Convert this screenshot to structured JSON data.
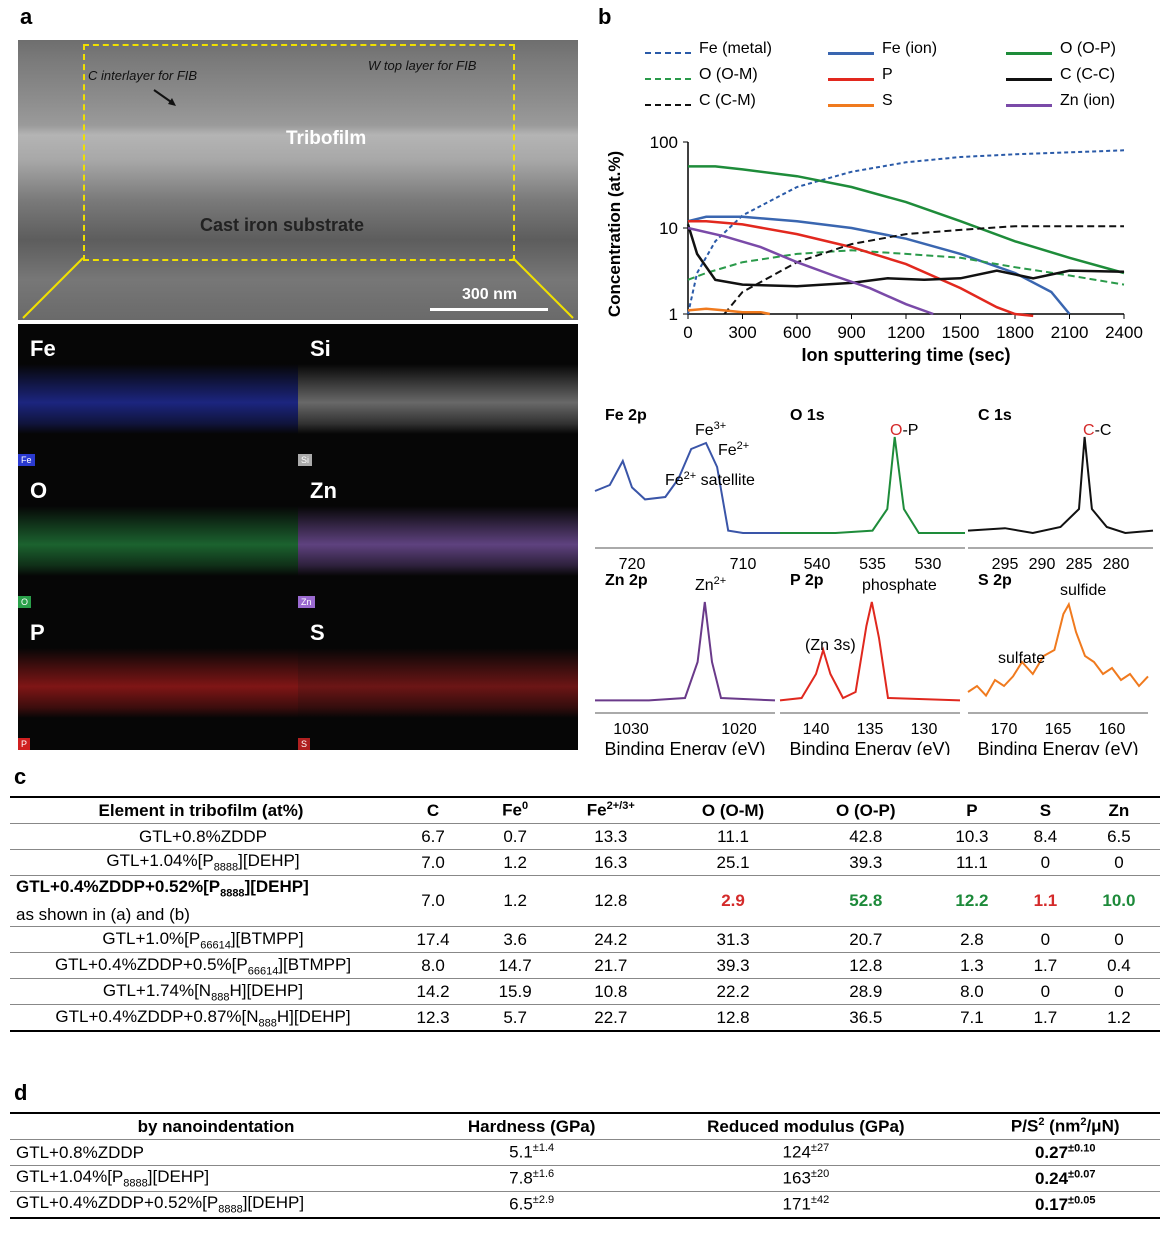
{
  "panels": {
    "a": "a",
    "b": "b",
    "c": "c",
    "d": "d"
  },
  "tem": {
    "c_interlayer": "C interlayer for FIB",
    "w_top": "W top layer for FIB",
    "tribofilm": "Tribofilm",
    "substrate": "Cast iron substrate",
    "scale": "300 nm"
  },
  "maps": [
    {
      "el": "Fe",
      "tag": "Fe",
      "color": "#2a3ad0"
    },
    {
      "el": "Si",
      "tag": "Si",
      "color": "#aaaaaa"
    },
    {
      "el": "O",
      "tag": "O",
      "color": "#2aa04a"
    },
    {
      "el": "Zn",
      "tag": "Zn",
      "color": "#9a6ad0"
    },
    {
      "el": "P",
      "tag": "P",
      "color": "#d02020"
    },
    {
      "el": "S",
      "tag": "S",
      "color": "#b02020"
    }
  ],
  "chart_data": [
    {
      "type": "line",
      "xlabel": "Ion sputtering time (sec)",
      "ylabel": "Concentration (at.%)",
      "yscale": "log",
      "xlim": [
        0,
        2400
      ],
      "ylim": [
        1,
        100
      ],
      "xticks": [
        "0",
        "300",
        "600",
        "900",
        "1200",
        "1500",
        "1800",
        "2100",
        "2400"
      ],
      "yticks": [
        "1",
        "10",
        "100"
      ],
      "legend": "top",
      "series": [
        {
          "name": "Fe (metal)",
          "color": "#2a5aa8",
          "dash": "4,3",
          "x": [
            0,
            50,
            150,
            300,
            600,
            900,
            1200,
            1500,
            1800,
            2100,
            2400
          ],
          "y": [
            1,
            3,
            7,
            14,
            30,
            45,
            58,
            67,
            72,
            76,
            80
          ]
        },
        {
          "name": "Fe (ion)",
          "color": "#3a66b0",
          "dash": "",
          "x": [
            0,
            100,
            300,
            600,
            900,
            1200,
            1500,
            1800,
            2000,
            2100
          ],
          "y": [
            12,
            13.5,
            13.5,
            12,
            10,
            7.5,
            5,
            3,
            1.8,
            1
          ]
        },
        {
          "name": "O (O-P)",
          "color": "#1e8c3a",
          "dash": "",
          "x": [
            0,
            150,
            300,
            600,
            900,
            1200,
            1500,
            1800,
            2100,
            2400
          ],
          "y": [
            52,
            52,
            48,
            40,
            30,
            20,
            12,
            7,
            4.5,
            3
          ]
        },
        {
          "name": "O (O-M)",
          "color": "#2a9a4a",
          "dash": "7,4",
          "x": [
            0,
            100,
            300,
            600,
            900,
            1200,
            1500,
            1800,
            2100,
            2400
          ],
          "y": [
            2.5,
            3,
            4,
            5,
            5.5,
            5,
            4.5,
            3.5,
            2.8,
            2.2
          ]
        },
        {
          "name": "P",
          "color": "#e2281e",
          "dash": "",
          "x": [
            0,
            100,
            300,
            600,
            900,
            1200,
            1500,
            1700,
            1800,
            1900
          ],
          "y": [
            12,
            12,
            11,
            8.5,
            6,
            3.8,
            2,
            1.2,
            1,
            0.95
          ]
        },
        {
          "name": "C (C-C)",
          "color": "#111111",
          "dash": "",
          "x": [
            0,
            50,
            150,
            300,
            600,
            900,
            1100,
            1300,
            1500,
            1700,
            1900,
            2100,
            2400
          ],
          "y": [
            11,
            5,
            2.5,
            2.2,
            2.1,
            2.3,
            2.6,
            2.5,
            2.6,
            3.2,
            2.6,
            3.2,
            3.1
          ]
        },
        {
          "name": "C (C-M)",
          "color": "#111111",
          "dash": "7,4",
          "x": [
            200,
            300,
            600,
            900,
            1200,
            1500,
            1800,
            2100,
            2400
          ],
          "y": [
            1,
            1.8,
            4,
            6.5,
            8.5,
            9.5,
            10.5,
            10.5,
            10.5
          ]
        },
        {
          "name": "S",
          "color": "#f07a1e",
          "dash": "",
          "x": [
            0,
            100,
            200,
            300,
            400,
            450
          ],
          "y": [
            1.1,
            1.15,
            1.1,
            1.05,
            1.05,
            1
          ]
        },
        {
          "name": "Zn (ion)",
          "color": "#7a4aa8",
          "dash": "",
          "x": [
            0,
            200,
            400,
            600,
            800,
            1000,
            1200,
            1350
          ],
          "y": [
            10,
            8,
            6,
            4,
            2.8,
            2,
            1.3,
            1
          ]
        }
      ]
    }
  ],
  "spectra": [
    {
      "title": "Fe 2p",
      "ticks": [
        "720",
        "710"
      ],
      "labels": [
        "Fe3+",
        "Fe2+",
        "Fe2+ satellite"
      ],
      "color": "#3a55a8"
    },
    {
      "title": "O 1s",
      "ticks": [
        "540",
        "535",
        "530"
      ],
      "labels": [
        "O-P"
      ],
      "color": "#1e8c3a"
    },
    {
      "title": "C 1s",
      "ticks": [
        "295",
        "290",
        "285",
        "280"
      ],
      "labels": [
        "C-C"
      ],
      "color": "#111111"
    },
    {
      "title": "Zn 2p",
      "ticks": [
        "1030",
        "1020"
      ],
      "labels": [
        "Zn2+"
      ],
      "color": "#6a3a8a",
      "xlabel": "Binding Energy (eV)"
    },
    {
      "title": "P 2p",
      "ticks": [
        "140",
        "135",
        "130"
      ],
      "labels": [
        "(Zn 3s)",
        "phosphate"
      ],
      "color": "#e0281e",
      "xlabel": "Binding Energy (eV)"
    },
    {
      "title": "S 2p",
      "ticks": [
        "170",
        "165",
        "160"
      ],
      "labels": [
        "sulfate",
        "sulfide"
      ],
      "color": "#f07a1e",
      "xlabel": "Binding Energy (eV)"
    }
  ],
  "table_c": {
    "headers": [
      "Element in tribofilm (at%)",
      "C",
      "Fe0",
      "Fe2+/3+",
      "O (O-M)",
      "O (O-P)",
      "P",
      "S",
      "Zn"
    ],
    "rows": [
      {
        "name": "GTL+0.8%ZDDP",
        "vals": [
          "6.7",
          "0.7",
          "13.3",
          "11.1",
          "42.8",
          "10.3",
          "8.4",
          "6.5"
        ]
      },
      {
        "name": "GTL+1.04%[P8888][DEHP]",
        "vals": [
          "7.0",
          "1.2",
          "16.3",
          "25.1",
          "39.3",
          "11.1",
          "0",
          "0"
        ]
      },
      {
        "name": "GTL+0.4%ZDDP+0.52%[P8888][DEHP]",
        "note": "as shown in (a) and (b)",
        "vals": [
          "7.0",
          "1.2",
          "12.8",
          "2.9",
          "52.8",
          "12.2",
          "1.1",
          "10.0"
        ]
      },
      {
        "name": "GTL+1.0%[P66614][BTMPP]",
        "vals": [
          "17.4",
          "3.6",
          "24.2",
          "31.3",
          "20.7",
          "2.8",
          "0",
          "0"
        ]
      },
      {
        "name": "GTL+0.4%ZDDP+0.5%[P66614][BTMPP]",
        "vals": [
          "8.0",
          "14.7",
          "21.7",
          "39.3",
          "12.8",
          "1.3",
          "1.7",
          "0.4"
        ]
      },
      {
        "name": "GTL+1.74%[N888H][DEHP]",
        "vals": [
          "14.2",
          "15.9",
          "10.8",
          "22.2",
          "28.9",
          "8.0",
          "0",
          "0"
        ]
      },
      {
        "name": "GTL+0.4%ZDDP+0.87%[N888H][DEHP]",
        "vals": [
          "12.3",
          "5.7",
          "22.7",
          "12.8",
          "36.5",
          "7.1",
          "1.7",
          "1.2"
        ]
      }
    ]
  },
  "table_d": {
    "headers": [
      "by nanoindentation",
      "Hardness (GPa)",
      "Reduced modulus (GPa)",
      "P/S2 (nm2/μN)"
    ],
    "rows": [
      {
        "name": "GTL+0.8%ZDDP",
        "h": "5.1",
        "he": "±1.4",
        "m": "124",
        "me": "±27",
        "p": "0.27",
        "pe": "±0.10"
      },
      {
        "name": "GTL+1.04%[P8888][DEHP]",
        "h": "7.8",
        "he": "±1.6",
        "m": "163",
        "me": "±20",
        "p": "0.24",
        "pe": "±0.07"
      },
      {
        "name": "GTL+0.4%ZDDP+0.52%[P8888][DEHP]",
        "h": "6.5",
        "he": "±2.9",
        "m": "171",
        "me": "±42",
        "p": "0.17",
        "pe": "±0.05"
      }
    ]
  }
}
